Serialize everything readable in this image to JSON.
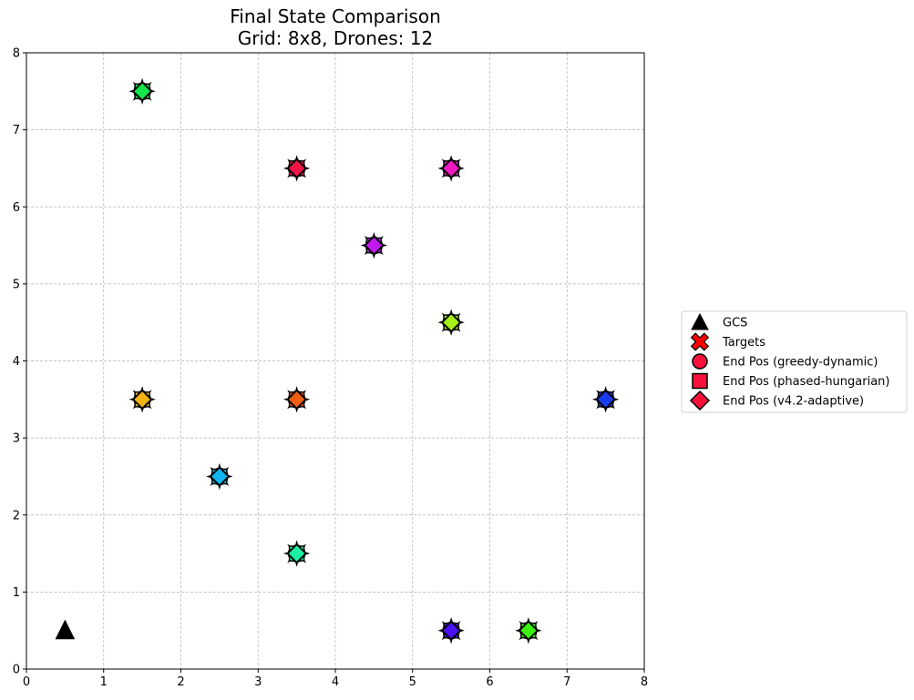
{
  "chart_data": {
    "type": "scatter",
    "title": "Final State Comparison",
    "subtitle": "Grid: 8x8, Drones: 12",
    "xlabel": "",
    "ylabel": "",
    "xlim": [
      0,
      8
    ],
    "ylim": [
      0,
      8
    ],
    "x_ticks": [
      "0",
      "1",
      "2",
      "3",
      "4",
      "5",
      "6",
      "7",
      "8"
    ],
    "y_ticks": [
      "0",
      "1",
      "2",
      "3",
      "4",
      "5",
      "6",
      "7",
      "8"
    ],
    "grid": true,
    "legend_position": "right",
    "legend": [
      {
        "label": "GCS",
        "marker": "triangle",
        "color": "#000000"
      },
      {
        "label": "Targets",
        "marker": "x",
        "color": "#ff0000"
      },
      {
        "label": "End Pos (greedy-dynamic)",
        "marker": "circle",
        "color": "#f5113a"
      },
      {
        "label": "End Pos (phased-hungarian)",
        "marker": "square",
        "color": "#f5113a"
      },
      {
        "label": "End Pos (v4.2-adaptive)",
        "marker": "diamond",
        "color": "#f5113a"
      }
    ],
    "gcs": {
      "x": 0.5,
      "y": 0.5
    },
    "points": [
      {
        "x": 1.5,
        "y": 7.5,
        "color": "#14e64b"
      },
      {
        "x": 3.5,
        "y": 6.5,
        "color": "#ef1548"
      },
      {
        "x": 5.5,
        "y": 6.5,
        "color": "#f017c2"
      },
      {
        "x": 4.5,
        "y": 5.5,
        "color": "#c219f0"
      },
      {
        "x": 5.5,
        "y": 4.5,
        "color": "#a6f01a"
      },
      {
        "x": 1.5,
        "y": 3.5,
        "color": "#f4b314"
      },
      {
        "x": 3.5,
        "y": 3.5,
        "color": "#f25c13"
      },
      {
        "x": 7.5,
        "y": 3.5,
        "color": "#1a3cf0"
      },
      {
        "x": 2.5,
        "y": 2.5,
        "color": "#11b6f0"
      },
      {
        "x": 3.5,
        "y": 1.5,
        "color": "#1cf0a6"
      },
      {
        "x": 5.5,
        "y": 0.5,
        "color": "#4a10f2"
      },
      {
        "x": 6.5,
        "y": 0.5,
        "color": "#3cf010"
      }
    ]
  }
}
